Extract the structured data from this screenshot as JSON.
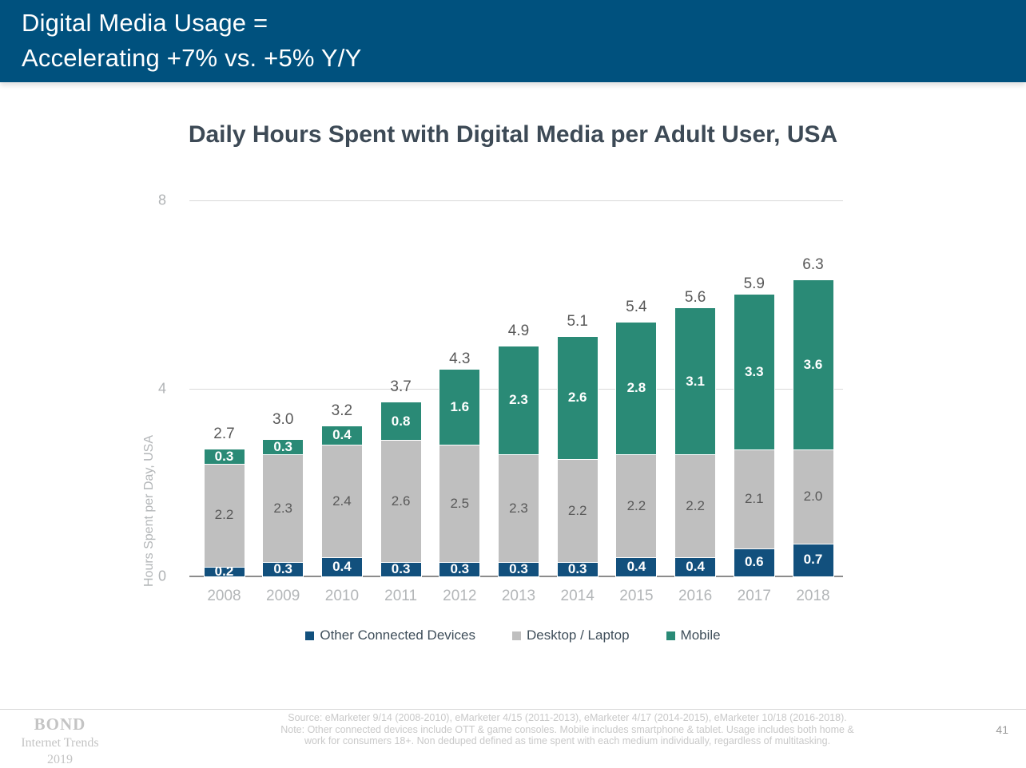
{
  "header": {
    "title_line1": "Digital Media Usage =",
    "title_line2": "Accelerating +7% vs. +5% Y/Y"
  },
  "colors": {
    "header_bg": "#00517e",
    "other_devices": "#12507d",
    "desktop_laptop": "#bfbfbf",
    "mobile": "#2a8a76"
  },
  "chart_data": {
    "type": "bar",
    "variant": "stacked-vertical",
    "title": "Daily Hours Spent with Digital Media per Adult User, USA",
    "xlabel": "",
    "ylabel": "Hours Spent per Day, USA",
    "ylim": [
      0,
      8
    ],
    "yticks": [
      0,
      4,
      8
    ],
    "grid": "horizontal",
    "legend_position": "bottom",
    "categories": [
      "2008",
      "2009",
      "2010",
      "2011",
      "2012",
      "2013",
      "2014",
      "2015",
      "2016",
      "2017",
      "2018"
    ],
    "series": [
      {
        "name": "Other Connected Devices",
        "color_key": "other_devices",
        "label_style": "light",
        "values": [
          0.2,
          0.3,
          0.4,
          0.3,
          0.3,
          0.3,
          0.3,
          0.4,
          0.4,
          0.6,
          0.7
        ]
      },
      {
        "name": "Desktop / Laptop",
        "color_key": "desktop_laptop",
        "label_style": "dark",
        "values": [
          2.2,
          2.3,
          2.4,
          2.6,
          2.5,
          2.3,
          2.2,
          2.2,
          2.2,
          2.1,
          2.0
        ]
      },
      {
        "name": "Mobile",
        "color_key": "mobile",
        "label_style": "light",
        "values": [
          0.3,
          0.3,
          0.4,
          0.8,
          1.6,
          2.3,
          2.6,
          2.8,
          3.1,
          3.3,
          3.6
        ]
      }
    ],
    "totals": [
      2.7,
      3.0,
      3.2,
      3.7,
      4.3,
      4.9,
      5.1,
      5.4,
      5.6,
      5.9,
      6.3
    ]
  },
  "footer": {
    "brand_line1": "BOND",
    "brand_line2": "Internet Trends",
    "brand_line3": "2019",
    "source_line1": "Source: eMarketer 9/14 (2008-2010), eMarketer 4/15 (2011-2013), eMarketer 4/17 (2014-2015), eMarketer 10/18 (2016-2018).",
    "source_line2": "Note: Other connected devices include OTT & game consoles. Mobile includes smartphone & tablet. Usage includes both home &",
    "source_line3": "work for consumers 18+. Non deduped defined as time spent with each medium individually, regardless of multitasking.",
    "page_number": "41"
  }
}
